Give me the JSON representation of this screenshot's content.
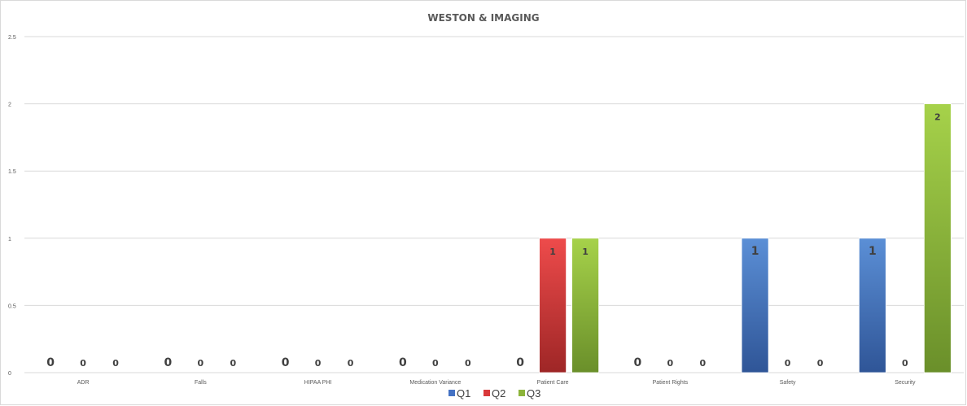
{
  "chart_data": {
    "type": "bar",
    "title": "WESTON & IMAGING",
    "categories": [
      "ADR",
      "Falls",
      "HIPAA PHI",
      "Medication Variance",
      "Patient Care",
      "Patient Rights",
      "Safety",
      "Security"
    ],
    "series": [
      {
        "name": "Q1",
        "color": "#4472c4",
        "values": [
          0,
          0,
          0,
          0,
          0,
          0,
          1,
          1
        ]
      },
      {
        "name": "Q2",
        "color": "#d9383a",
        "values": [
          0,
          0,
          0,
          0,
          1,
          0,
          0,
          0
        ]
      },
      {
        "name": "Q3",
        "color": "#8cb43a",
        "values": [
          0,
          0,
          0,
          0,
          1,
          0,
          0,
          2
        ]
      }
    ],
    "yticks": [
      "0",
      "0.5",
      "1",
      "1.5",
      "2",
      "2.5"
    ],
    "ylim": [
      0,
      2.5
    ],
    "grid": true,
    "legend": "bottom"
  }
}
